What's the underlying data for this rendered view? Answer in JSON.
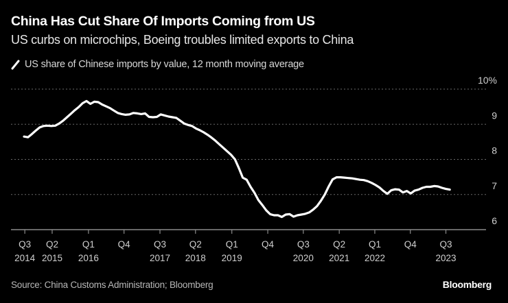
{
  "header": {
    "title": "China Has Cut Share Of Imports Coming from US",
    "subtitle": "US curbs on microchips, Boeing troubles limited exports to China"
  },
  "legend": {
    "label": "US share of Chinese imports by value, 12 month moving average",
    "icon": "line-swatch-icon"
  },
  "footer": {
    "source": "Source: China Customs Administration; Bloomberg",
    "brand": "Bloomberg"
  },
  "colors": {
    "background": "#000000",
    "line": "#ffffff",
    "grid": "#6b6b6b",
    "axis": "#8c8c8c",
    "tick_text": "#cfcfcf"
  },
  "chart_data": {
    "type": "line",
    "title": "China Has Cut Share Of Imports Coming from US",
    "subtitle": "US curbs on microchips, Boeing troubles limited exports to China",
    "xlabel": "",
    "ylabel": "",
    "y_unit": "%",
    "ylim": [
      6,
      10
    ],
    "y_ticks": [
      6,
      7,
      8,
      9,
      10
    ],
    "y_tick_labels": [
      "6",
      "7",
      "8",
      "9",
      "10%"
    ],
    "y_axis_side": "right",
    "grid": true,
    "legend": "top-left",
    "x_start": "2014-07",
    "x_frequency": "monthly",
    "x_ticks": [
      {
        "month_index": 0.2,
        "line1": "Q3",
        "line2": "2014"
      },
      {
        "month_index": 7.2,
        "line1": "Q2",
        "line2": "2015"
      },
      {
        "month_index": 16.5,
        "line1": "Q1",
        "line2": "2016"
      },
      {
        "month_index": 25.6,
        "line1": "Q4",
        "line2": ""
      },
      {
        "month_index": 34.8,
        "line1": "Q3",
        "line2": "2017"
      },
      {
        "month_index": 43.9,
        "line1": "Q2",
        "line2": "2018"
      },
      {
        "month_index": 53.2,
        "line1": "Q1",
        "line2": "2019"
      },
      {
        "month_index": 62.4,
        "line1": "Q4",
        "line2": ""
      },
      {
        "month_index": 71.5,
        "line1": "Q3",
        "line2": "2020"
      },
      {
        "month_index": 80.7,
        "line1": "Q2",
        "line2": "2021"
      },
      {
        "month_index": 89.8,
        "line1": "Q1",
        "line2": "2022"
      },
      {
        "month_index": 98.9,
        "line1": "Q4",
        "line2": ""
      },
      {
        "month_index": 108.0,
        "line1": "Q3",
        "line2": "2023"
      }
    ],
    "series": [
      {
        "name": "US share of Chinese imports by value, 12 month moving average",
        "values": [
          8.65,
          8.63,
          8.72,
          8.82,
          8.91,
          8.95,
          8.96,
          8.95,
          8.96,
          9.02,
          9.1,
          9.2,
          9.3,
          9.4,
          9.49,
          9.6,
          9.66,
          9.58,
          9.64,
          9.63,
          9.56,
          9.51,
          9.46,
          9.39,
          9.32,
          9.29,
          9.27,
          9.28,
          9.32,
          9.31,
          9.29,
          9.31,
          9.21,
          9.2,
          9.21,
          9.28,
          9.25,
          9.22,
          9.2,
          9.18,
          9.1,
          9.02,
          8.98,
          8.95,
          8.88,
          8.83,
          8.77,
          8.7,
          8.62,
          8.53,
          8.43,
          8.33,
          8.23,
          8.13,
          8.0,
          7.75,
          7.48,
          7.42,
          7.22,
          7.05,
          6.84,
          6.7,
          6.55,
          6.44,
          6.41,
          6.41,
          6.36,
          6.43,
          6.44,
          6.37,
          6.41,
          6.43,
          6.45,
          6.49,
          6.57,
          6.67,
          6.82,
          7.0,
          7.23,
          7.43,
          7.49,
          7.49,
          7.48,
          7.47,
          7.46,
          7.44,
          7.42,
          7.41,
          7.38,
          7.33,
          7.27,
          7.2,
          7.1,
          7.02,
          7.12,
          7.15,
          7.14,
          7.06,
          7.1,
          7.03,
          7.11,
          7.14,
          7.19,
          7.22,
          7.22,
          7.24,
          7.23,
          7.19,
          7.16,
          7.14
        ]
      }
    ]
  }
}
